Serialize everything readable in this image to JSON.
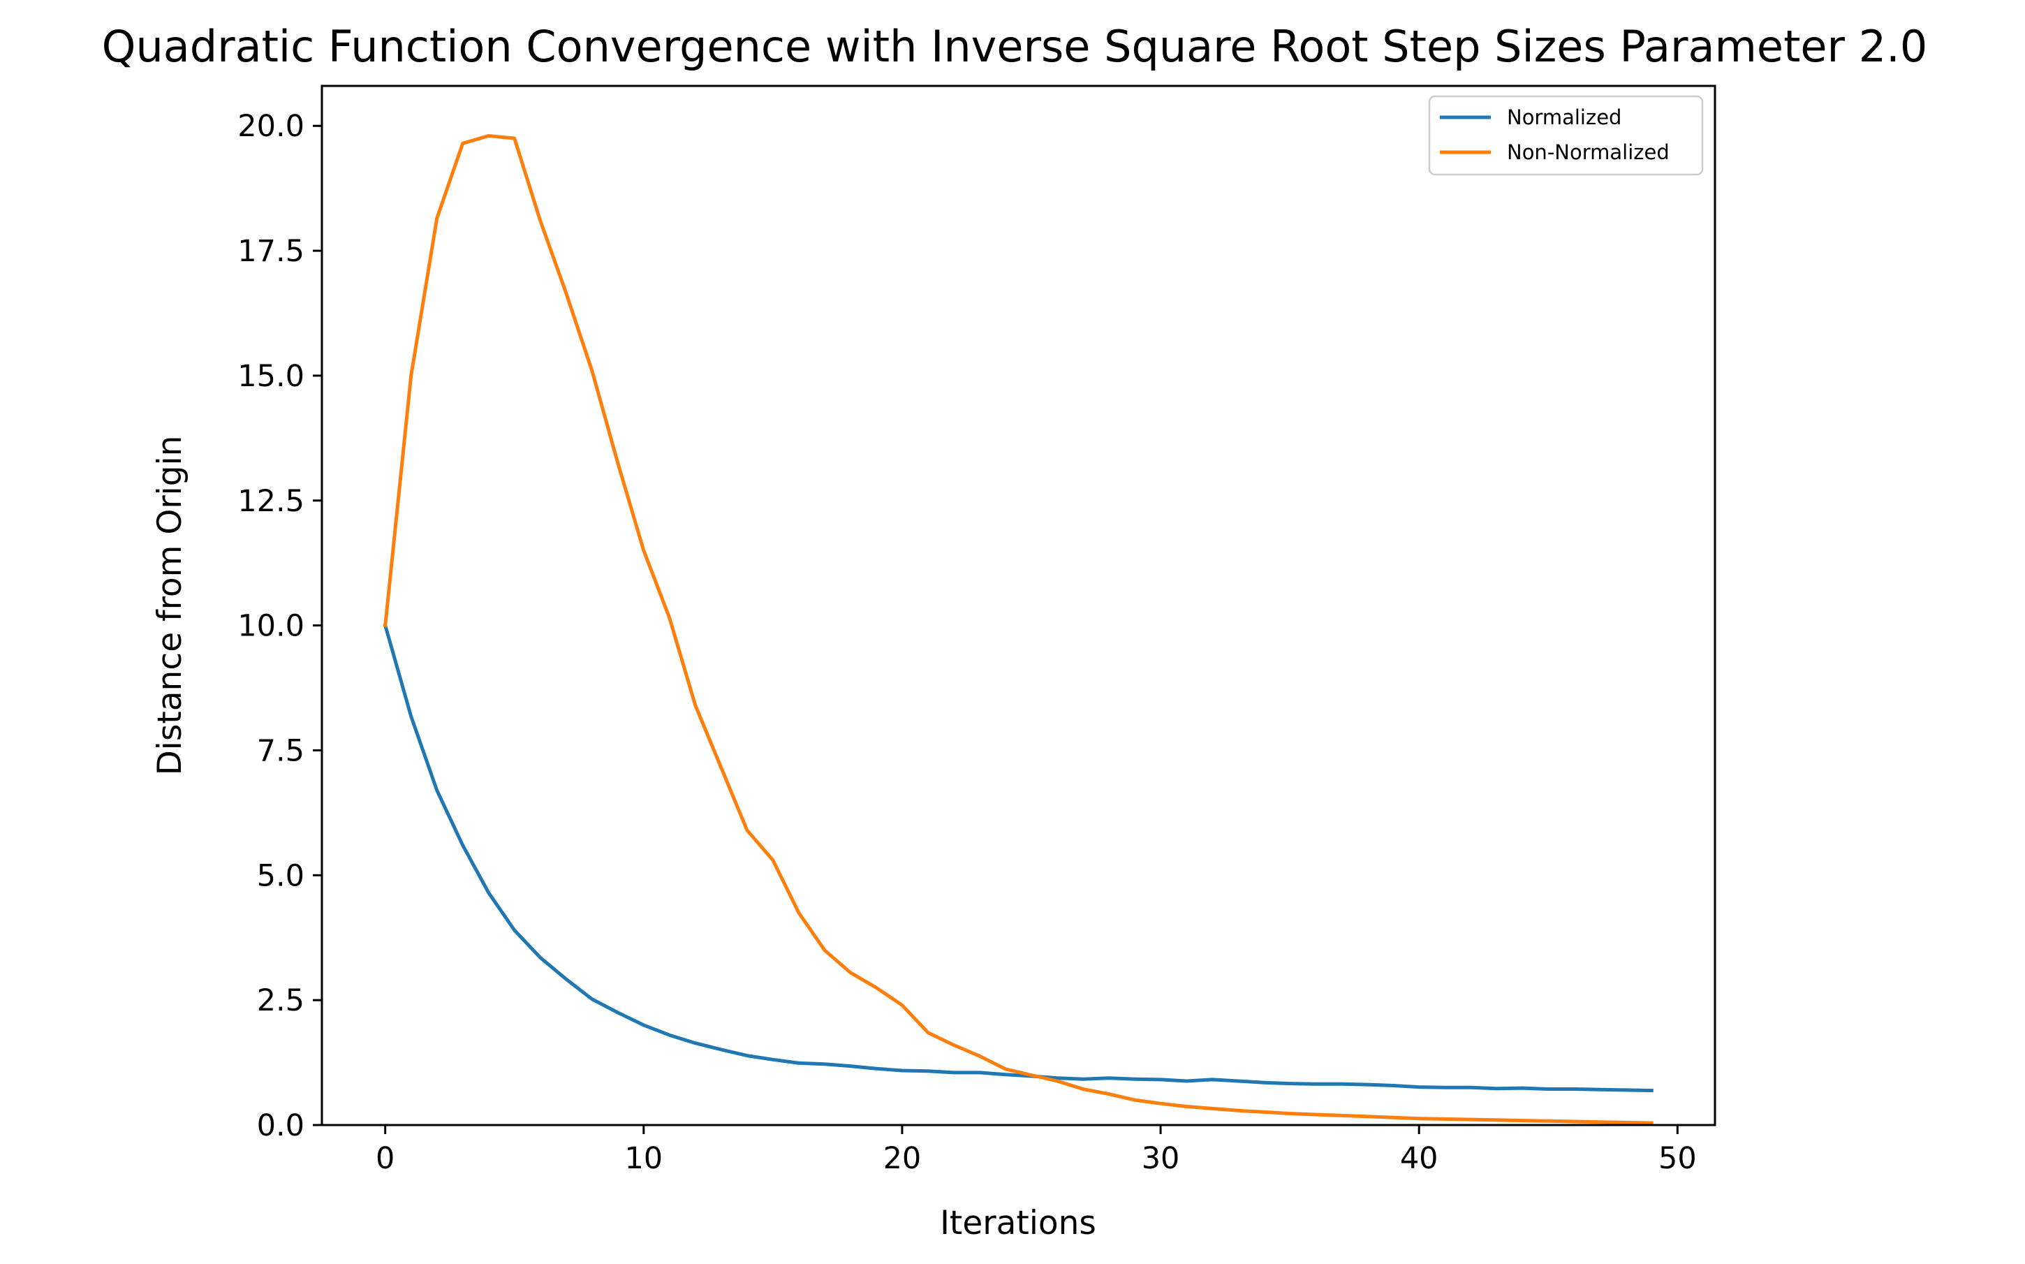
{
  "chart_data": {
    "type": "line",
    "title": "Quadratic Function Convergence with Inverse Square Root Step Sizes Parameter 2.0",
    "xlabel": "Iterations",
    "ylabel": "Distance from Origin",
    "xlim": [
      -2.45,
      51.45
    ],
    "ylim": [
      0,
      20.8
    ],
    "xticks": [
      0,
      10,
      20,
      30,
      40,
      50
    ],
    "xtick_labels": [
      "0",
      "10",
      "20",
      "30",
      "40",
      "50"
    ],
    "yticks": [
      0,
      2.5,
      5,
      7.5,
      10,
      12.5,
      15,
      17.5,
      20
    ],
    "ytick_labels": [
      "0.0",
      "2.5",
      "5.0",
      "7.5",
      "10.0",
      "12.5",
      "15.0",
      "17.5",
      "20.0"
    ],
    "grid": false,
    "legend_position": "upper right",
    "x": [
      0,
      1,
      2,
      3,
      4,
      5,
      6,
      7,
      8,
      9,
      10,
      11,
      12,
      13,
      14,
      15,
      16,
      17,
      18,
      19,
      20,
      21,
      22,
      23,
      24,
      25,
      26,
      27,
      28,
      29,
      30,
      31,
      32,
      33,
      34,
      35,
      36,
      37,
      38,
      39,
      40,
      41,
      42,
      43,
      44,
      45,
      46,
      47,
      48,
      49
    ],
    "series": [
      {
        "name": "Normalized",
        "color": "#1f77b4",
        "values": [
          10.0,
          8.18,
          6.7,
          5.6,
          4.65,
          3.9,
          3.35,
          2.92,
          2.52,
          2.25,
          2.0,
          1.8,
          1.64,
          1.51,
          1.39,
          1.31,
          1.24,
          1.22,
          1.18,
          1.13,
          1.09,
          1.08,
          1.05,
          1.05,
          1.01,
          0.98,
          0.94,
          0.92,
          0.94,
          0.92,
          0.91,
          0.88,
          0.91,
          0.88,
          0.85,
          0.83,
          0.82,
          0.82,
          0.81,
          0.79,
          0.76,
          0.75,
          0.75,
          0.73,
          0.74,
          0.72,
          0.72,
          0.71,
          0.7,
          0.69
        ]
      },
      {
        "name": "Non-Normalized",
        "color": "#ff7f0e",
        "values": [
          10.0,
          15.0,
          18.15,
          19.65,
          19.8,
          19.75,
          18.1,
          16.65,
          15.1,
          13.25,
          11.5,
          10.15,
          8.4,
          7.15,
          5.9,
          5.3,
          4.25,
          3.5,
          3.05,
          2.75,
          2.4,
          1.85,
          1.6,
          1.38,
          1.12,
          1.0,
          0.88,
          0.72,
          0.62,
          0.5,
          0.43,
          0.37,
          0.33,
          0.29,
          0.26,
          0.23,
          0.21,
          0.19,
          0.17,
          0.15,
          0.13,
          0.12,
          0.11,
          0.1,
          0.09,
          0.08,
          0.07,
          0.06,
          0.05,
          0.04
        ]
      }
    ]
  }
}
